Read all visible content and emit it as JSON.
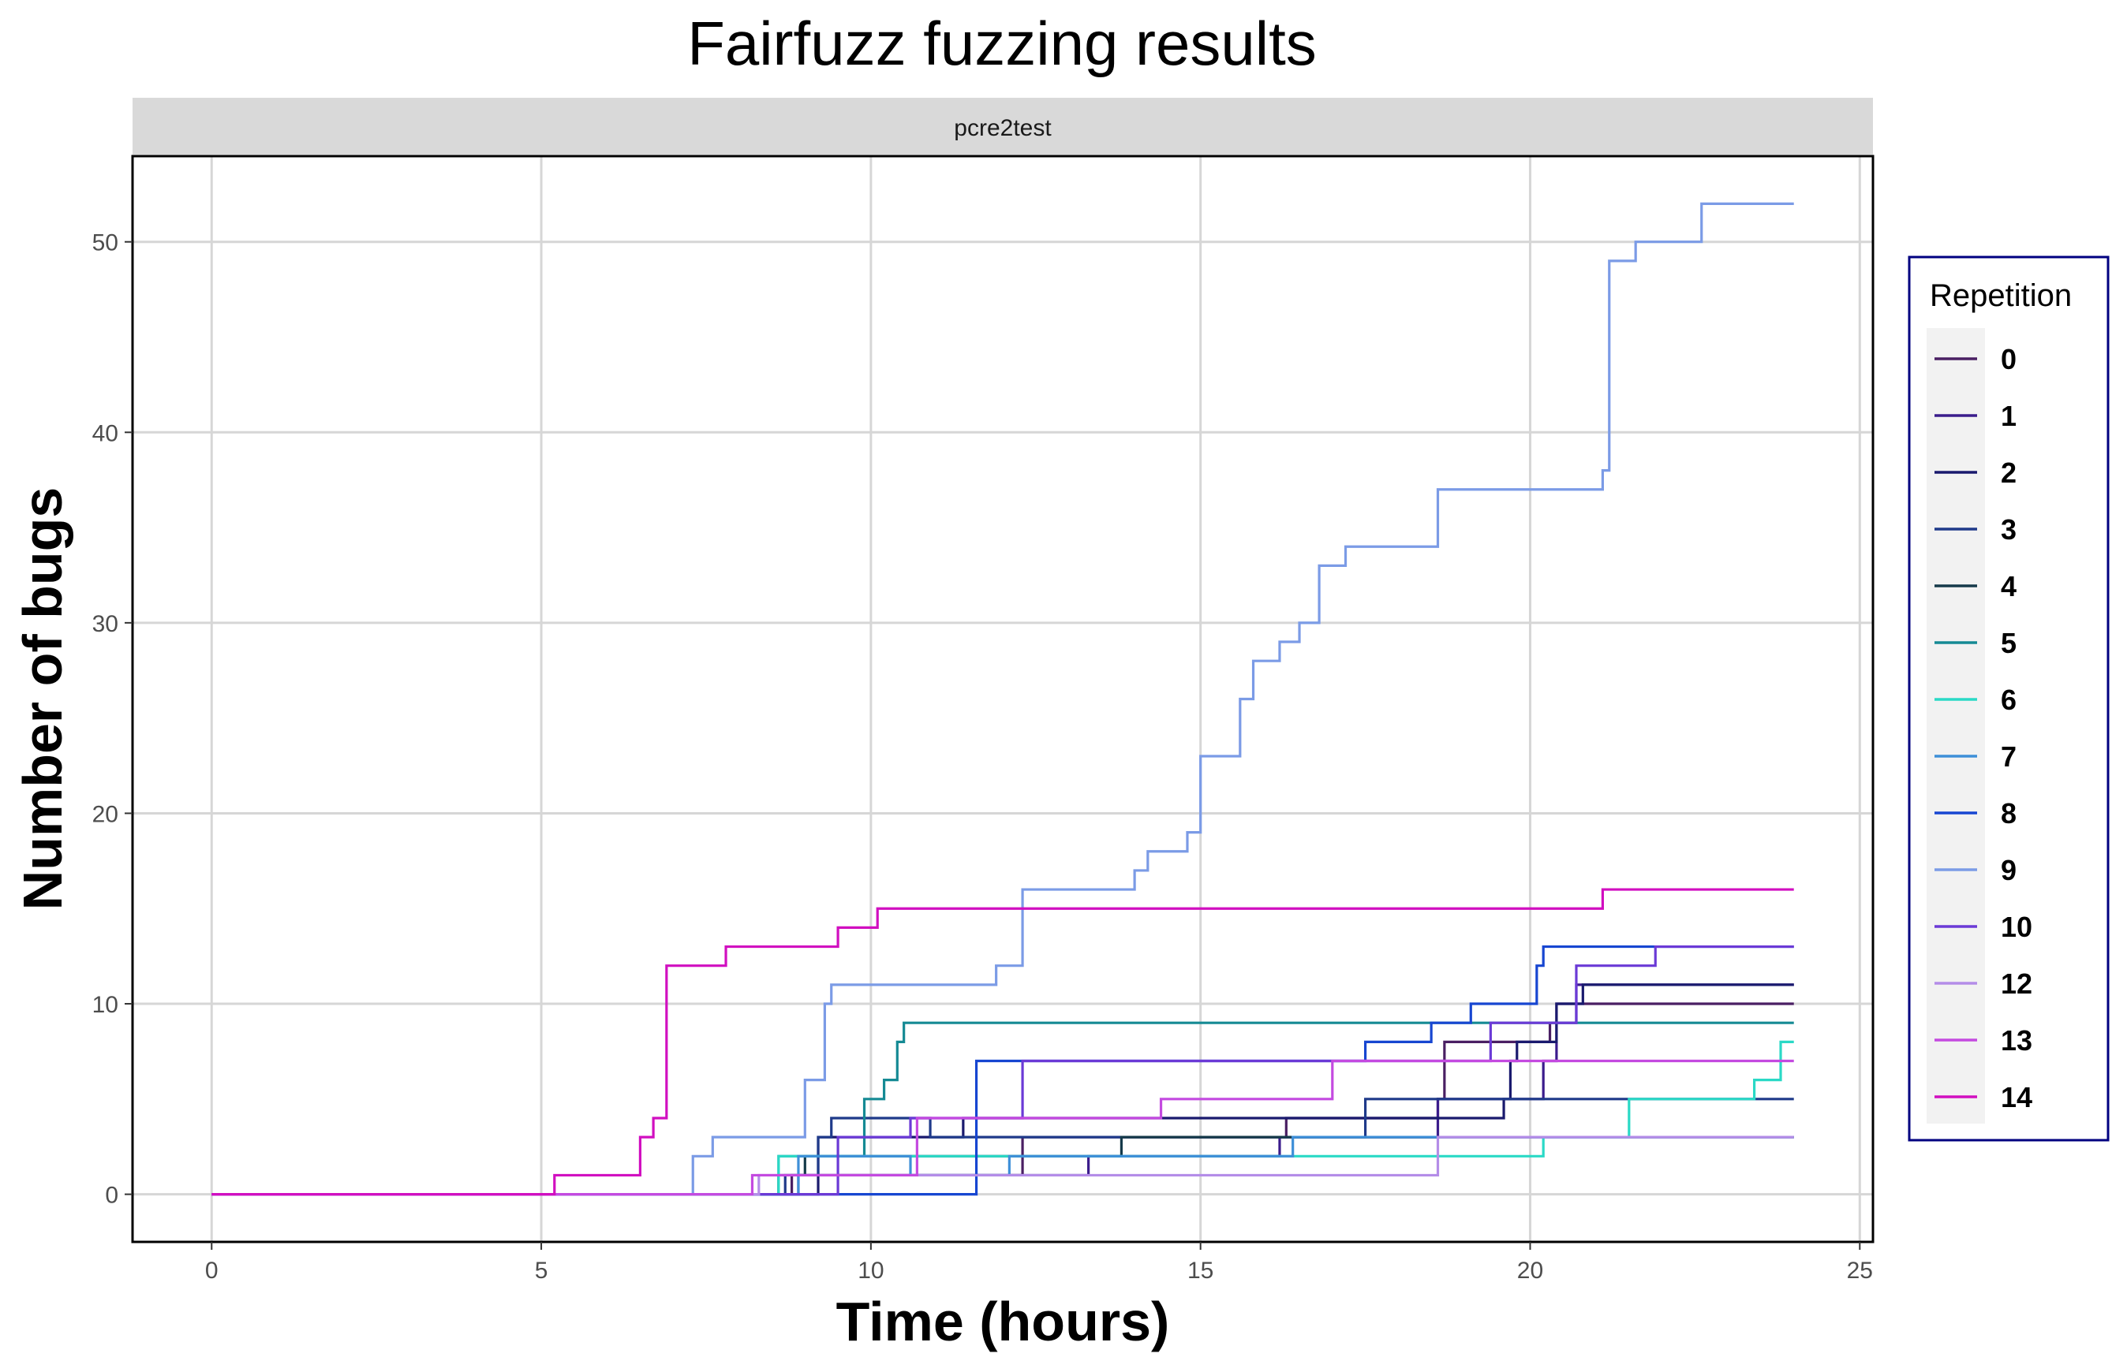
{
  "chart_data": {
    "type": "line",
    "step": true,
    "title": "Fairfuzz fuzzing results",
    "facet": "pcre2test",
    "xlabel": "Time (hours)",
    "ylabel": "Number of bugs",
    "xlim": [
      -1.2,
      25.2
    ],
    "ylim": [
      -2.5,
      54.5
    ],
    "xticks": [
      0,
      5,
      10,
      15,
      20,
      25
    ],
    "yticks": [
      0,
      10,
      20,
      30,
      40,
      50
    ],
    "grid": true,
    "legend": {
      "title": "Repetition",
      "position": "right"
    },
    "series": [
      {
        "name": "0",
        "color": "#4a1f63",
        "x": [
          0,
          8.8,
          12.3,
          16.3,
          18.6,
          18.7,
          20.3,
          20.4,
          22.4,
          24.0
        ],
        "y": [
          0,
          1,
          3,
          4,
          5,
          8,
          9,
          10,
          10,
          10
        ]
      },
      {
        "name": "1",
        "color": "#3b1c8c",
        "x": [
          0,
          8.9,
          13.3,
          16.2,
          18.6,
          20.2,
          20.4,
          20.7,
          24.0
        ],
        "y": [
          0,
          1,
          2,
          3,
          5,
          7,
          9,
          11,
          11
        ]
      },
      {
        "name": "2",
        "color": "#1a1a6e",
        "x": [
          0,
          9.2,
          11.4,
          16.3,
          19.6,
          19.7,
          19.8,
          20.4,
          20.8,
          24.0
        ],
        "y": [
          0,
          3,
          4,
          4,
          5,
          7,
          8,
          10,
          11,
          11
        ]
      },
      {
        "name": "3",
        "color": "#1f3a8a",
        "x": [
          0,
          8.7,
          9.2,
          9.4,
          10.9,
          11.9,
          17.5,
          24.0
        ],
        "y": [
          0,
          1,
          3,
          4,
          3,
          3,
          5,
          5
        ]
      },
      {
        "name": "4",
        "color": "#163a4a",
        "x": [
          0,
          8.6,
          9.0,
          13.8,
          16.4,
          17.4,
          24.0
        ],
        "y": [
          0,
          1,
          2,
          3,
          3,
          3,
          3
        ]
      },
      {
        "name": "5",
        "color": "#158a94",
        "x": [
          0,
          8.6,
          9.9,
          10.2,
          10.4,
          10.5,
          24.0
        ],
        "y": [
          0,
          2,
          5,
          6,
          8,
          9,
          9
        ]
      },
      {
        "name": "6",
        "color": "#2ad9c6",
        "x": [
          0,
          8.6,
          12.1,
          20.2,
          21.5,
          23.4,
          23.8,
          24.0
        ],
        "y": [
          0,
          2,
          2,
          3,
          5,
          6,
          8,
          8
        ]
      },
      {
        "name": "7",
        "color": "#3e8fd8",
        "x": [
          0,
          8.9,
          10.6,
          12.1,
          16.4,
          24.0
        ],
        "y": [
          0,
          2,
          1,
          2,
          3,
          3
        ]
      },
      {
        "name": "8",
        "color": "#1746d1",
        "x": [
          0,
          11.6,
          17.5,
          18.5,
          19.1,
          20.1,
          20.2,
          24.0
        ],
        "y": [
          0,
          7,
          8,
          9,
          10,
          12,
          13,
          13
        ]
      },
      {
        "name": "9",
        "color": "#7b9be6",
        "x": [
          0,
          7.3,
          7.6,
          9.0,
          9.3,
          9.4,
          11.9,
          12.3,
          14.0,
          14.2,
          14.8,
          15.0,
          15.6,
          15.8,
          16.2,
          16.5,
          16.8,
          17.2,
          18.6,
          21.1,
          21.2,
          21.3,
          21.6,
          22.6,
          24.0
        ],
        "y": [
          0,
          2,
          3,
          6,
          10,
          11,
          12,
          16,
          17,
          18,
          19,
          23,
          26,
          28,
          29,
          30,
          33,
          34,
          37,
          38,
          49,
          49,
          50,
          52,
          52
        ]
      },
      {
        "name": "10",
        "color": "#6b3ad6",
        "x": [
          0,
          9.5,
          10.6,
          12.3,
          19.4,
          20.7,
          21.9,
          24.0
        ],
        "y": [
          0,
          3,
          4,
          7,
          9,
          12,
          13,
          13
        ]
      },
      {
        "name": "12",
        "color": "#b48de8",
        "x": [
          0,
          8.3,
          9.8,
          13.3,
          18.6,
          24.0
        ],
        "y": [
          0,
          1,
          1,
          1,
          3,
          3
        ]
      },
      {
        "name": "13",
        "color": "#c44ae0",
        "x": [
          0,
          8.2,
          10.7,
          14.4,
          17.0,
          24.0
        ],
        "y": [
          0,
          1,
          4,
          5,
          7,
          7
        ]
      },
      {
        "name": "14",
        "color": "#d10fc0",
        "x": [
          0,
          5.2,
          6.5,
          6.7,
          6.9,
          7.8,
          9.5,
          10.1,
          21.1,
          24.0
        ],
        "y": [
          0,
          1,
          3,
          4,
          12,
          13,
          14,
          15,
          16,
          16
        ]
      }
    ]
  }
}
